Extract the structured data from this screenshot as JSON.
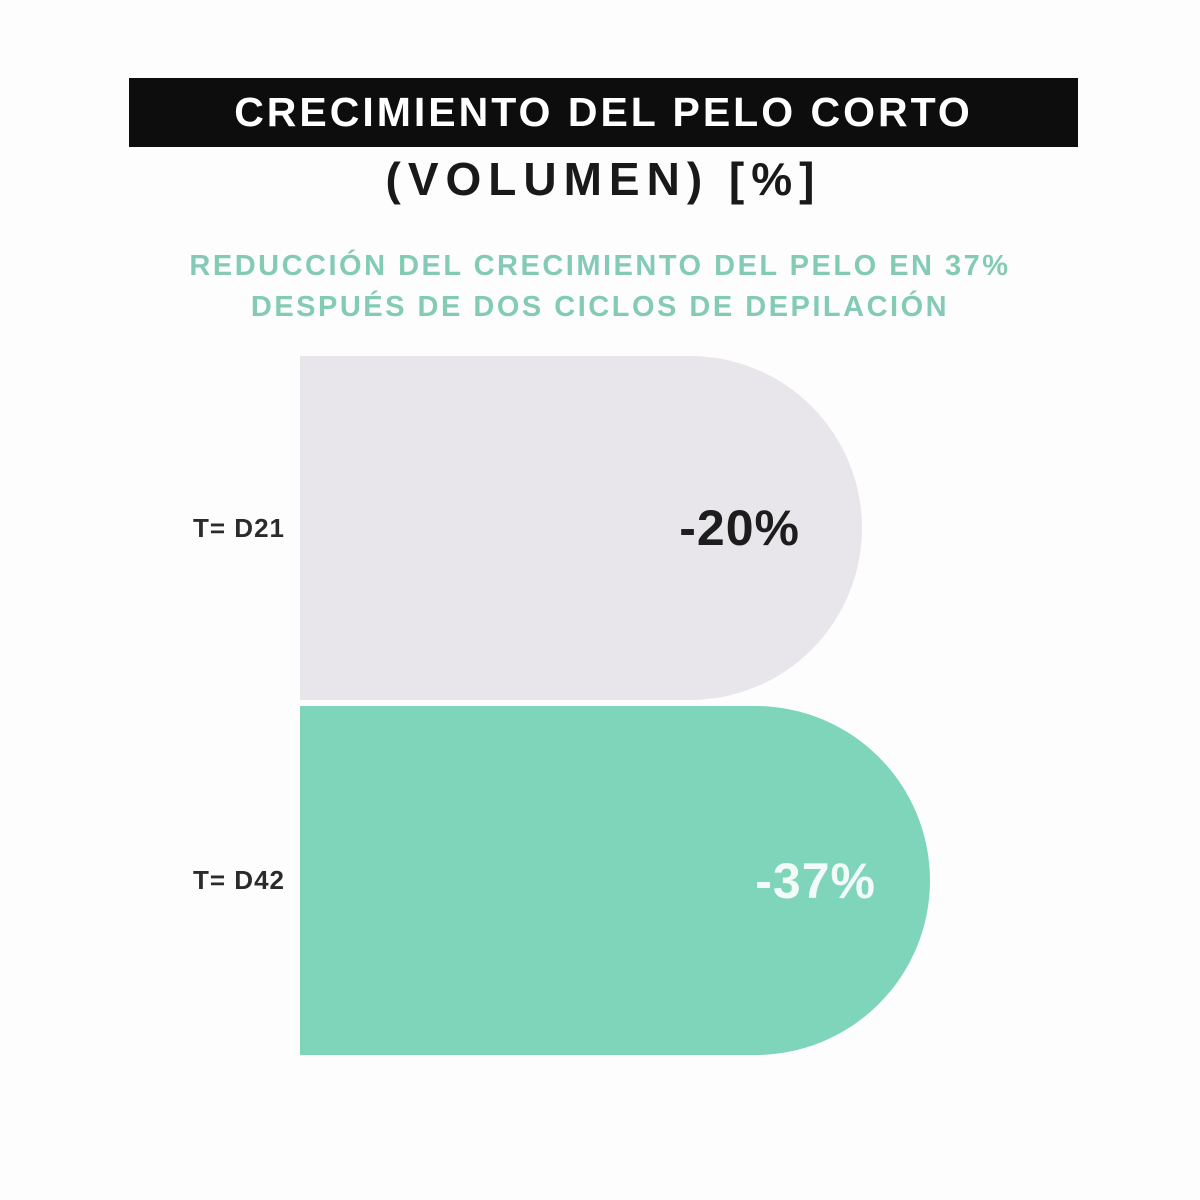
{
  "page": {
    "background": "#fdfdfd"
  },
  "header": {
    "banner_title": "CRECIMIENTO DEL PELO CORTO",
    "banner_bg": "#0d0d0d",
    "banner_text_color": "#ffffff",
    "units_line": "(VOLUMEN) [%]",
    "subtitle_line1": "REDUCCIÓN DEL CRECIMIENTO DEL PELO EN 37%",
    "subtitle_line2": "DESPUÉS DE DOS CICLOS DE DEPILACIÓN",
    "subtitle_color": "#84cbb5"
  },
  "chart": {
    "rows": [
      {
        "label": "T= D21",
        "value_label": "-20%",
        "bar_color": "#e8e6ea",
        "value_color": "#1d1d1d"
      },
      {
        "label": "T= D42",
        "value_label": "-37%",
        "bar_color": "#7ed5ba",
        "value_color": "#f3fbf8"
      }
    ]
  },
  "chart_data": {
    "type": "bar",
    "orientation": "horizontal",
    "title": "CRECIMIENTO DEL PELO CORTO (VOLUMEN) [%]",
    "annotation": "REDUCCIÓN DEL CRECIMIENTO DEL PELO EN 37% DESPUÉS DE DOS CICLOS DE DEPILACIÓN",
    "categories": [
      "T= D21",
      "T= D42"
    ],
    "values": [
      -20,
      -37
    ],
    "value_labels": [
      "-20%",
      "-37%"
    ],
    "units": "% volume change",
    "series_colors": [
      "#e8e6ea",
      "#7ed5ba"
    ],
    "value_label_colors": [
      "#1d1d1d",
      "#f3fbf8"
    ],
    "xlabel": "",
    "ylabel": "",
    "axes_visible": false,
    "grid": false,
    "legend": false,
    "bar_style": "rounded-right-cap"
  }
}
